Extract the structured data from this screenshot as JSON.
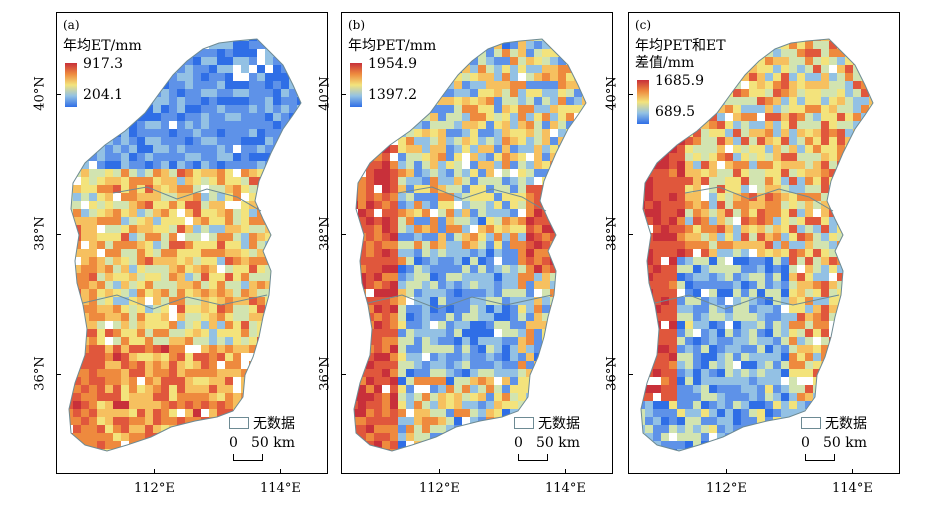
{
  "panels": [
    {
      "label": "(a)",
      "title_lines": [
        "年均ET/mm"
      ],
      "max": "917.3",
      "min": "204.1",
      "style": "et"
    },
    {
      "label": "(b)",
      "title_lines": [
        "年均PET/mm"
      ],
      "max": "1954.9",
      "min": "1397.2",
      "style": "pet"
    },
    {
      "label": "(c)",
      "title_lines": [
        "年均PET和ET",
        "差值/mm"
      ],
      "max": "1685.9",
      "min": "689.5",
      "style": "diff"
    }
  ],
  "legend": {
    "nodata": "无数据",
    "scale_zero": "0",
    "scale_label": "50 km"
  },
  "axes": {
    "y_ticks": [
      "40°N",
      "38°N",
      "36°N"
    ],
    "x_ticks": [
      "112°E",
      "114°E"
    ]
  },
  "colors": {
    "high": "#c8303a",
    "mid": "#f3e37c",
    "low": "#2f6ee6",
    "boundary": "#6d8a93"
  }
}
